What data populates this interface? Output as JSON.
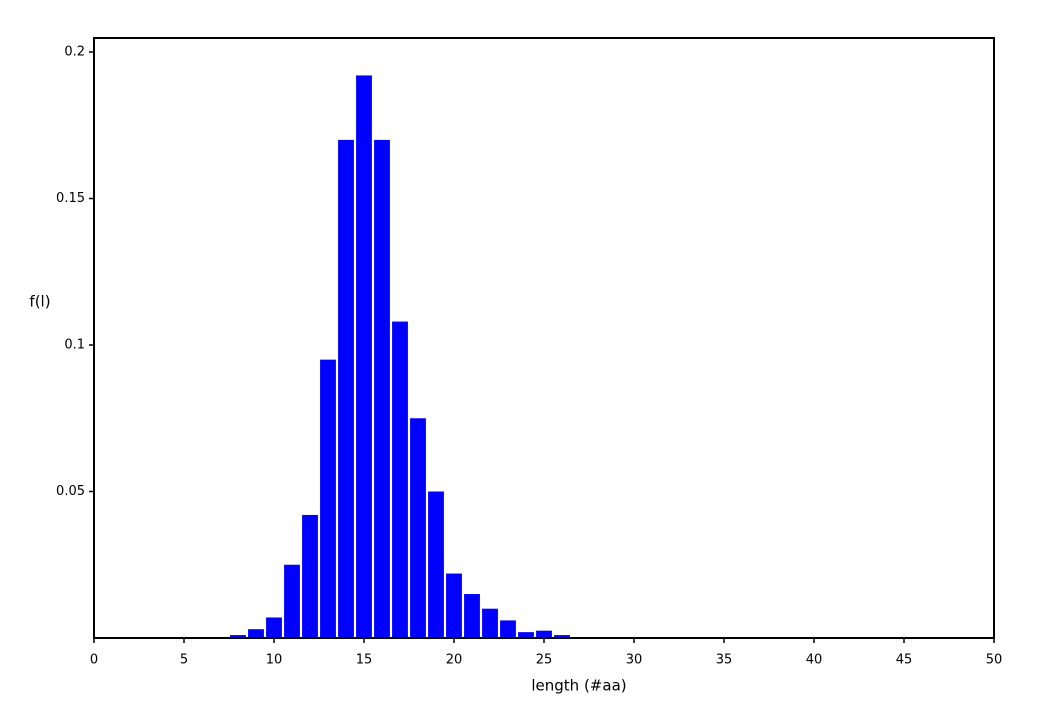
{
  "chart_data": {
    "type": "bar",
    "x": [
      8,
      9,
      10,
      11,
      12,
      13,
      14,
      15,
      16,
      17,
      18,
      19,
      20,
      21,
      22,
      23,
      24,
      25,
      26
    ],
    "values": [
      0.001,
      0.003,
      0.007,
      0.025,
      0.042,
      0.095,
      0.17,
      0.192,
      0.17,
      0.108,
      0.075,
      0.05,
      0.022,
      0.015,
      0.01,
      0.006,
      0.002,
      0.0025,
      0.001
    ],
    "color": "#0000ff",
    "xlabel": "length (#aa)",
    "ylabel": "f(l)",
    "xlim": [
      0,
      50
    ],
    "xticks": [
      0,
      5,
      10,
      15,
      20,
      25,
      30,
      35,
      40,
      45,
      50
    ],
    "ylim": [
      0,
      0.2
    ],
    "yticks": [
      0.05,
      0.1,
      0.15,
      0.2
    ],
    "grid": false
  }
}
